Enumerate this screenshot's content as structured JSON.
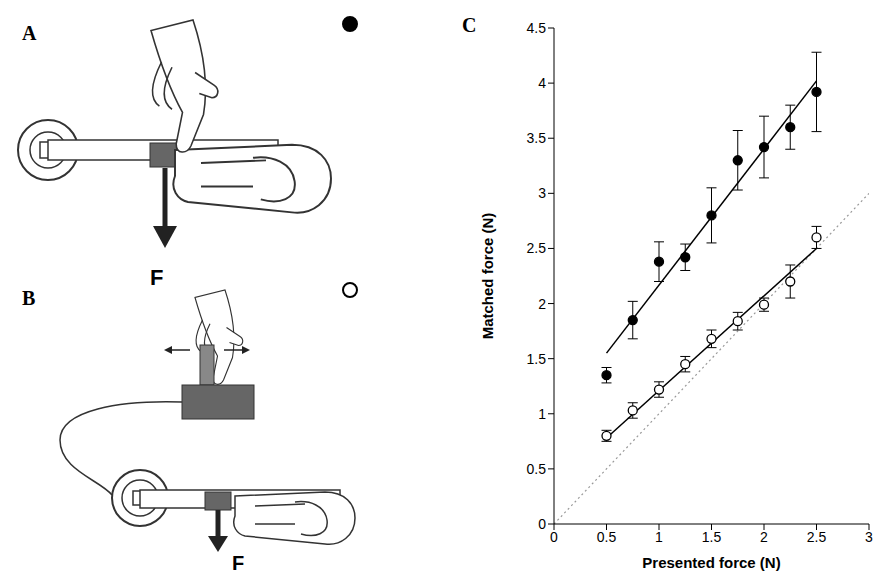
{
  "figure": {
    "panels": [
      {
        "label": "A",
        "force_label": "F",
        "series_index": 0
      },
      {
        "label": "B",
        "force_label": "F",
        "series_index": 1
      }
    ]
  },
  "chart_data": {
    "type": "scatter",
    "panel_label": "C",
    "x_label": "Presented force (N)",
    "y_label": "Matched force (N)",
    "xlim": [
      0,
      3
    ],
    "xticks": [
      0,
      0.5,
      1,
      1.5,
      2,
      2.5,
      3
    ],
    "ylim": [
      0,
      4.5
    ],
    "yticks": [
      0,
      0.5,
      1,
      1.5,
      2,
      2.5,
      3,
      3.5,
      4,
      4.5
    ],
    "grid": false,
    "x": [
      0.5,
      0.75,
      1,
      1.25,
      1.5,
      1.75,
      2,
      2.25,
      2.5
    ],
    "series": [
      {
        "marker": "filled",
        "color": "#000000",
        "values": [
          1.35,
          1.85,
          2.38,
          2.42,
          2.8,
          3.3,
          3.42,
          3.6,
          3.92
        ],
        "error": [
          0.07,
          0.17,
          0.18,
          0.12,
          0.25,
          0.27,
          0.28,
          0.2,
          0.36
        ],
        "fit": {
          "x": [
            0.5,
            2.5
          ],
          "values": [
            1.55,
            4.02
          ]
        }
      },
      {
        "marker": "open",
        "color": "#000000",
        "values": [
          0.8,
          1.03,
          1.22,
          1.45,
          1.68,
          1.84,
          1.99,
          2.2,
          2.6
        ],
        "error": [
          0.05,
          0.07,
          0.07,
          0.07,
          0.08,
          0.08,
          0.06,
          0.15,
          0.1
        ],
        "fit": {
          "x": [
            0.5,
            2.5
          ],
          "values": [
            0.78,
            2.5
          ]
        }
      }
    ],
    "reference_line": {
      "x": [
        0,
        3
      ],
      "values": [
        0,
        3
      ],
      "line_style": "dotted",
      "color": "#999999"
    }
  }
}
